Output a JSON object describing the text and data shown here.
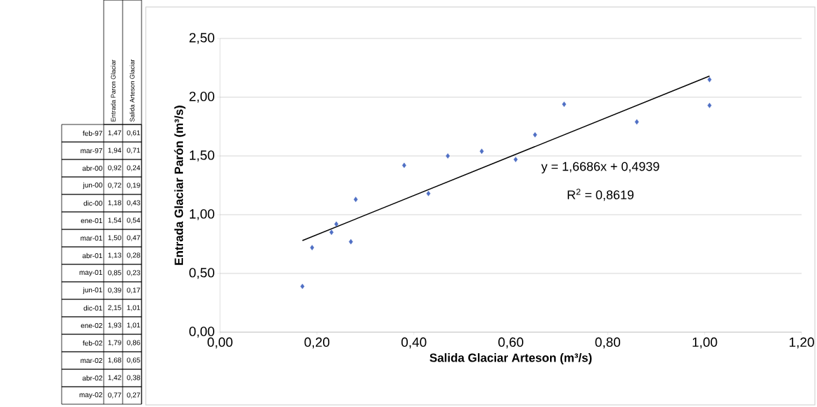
{
  "chart_data": [
    {
      "type": "other",
      "categories": [
        "feb-97",
        "mar-97",
        "abr-00",
        "jun-00",
        "dic-00",
        "ene-01",
        "mar-01",
        "abr-01",
        "may-01",
        "jun-01",
        "dic-01",
        "ene-02",
        "feb-02",
        "mar-02",
        "abr-02",
        "may-02"
      ],
      "series": [
        {
          "name": "Entrada Paron Glaciar",
          "values": [
            1.47,
            1.94,
            0.92,
            0.72,
            1.18,
            1.54,
            1.5,
            1.13,
            0.85,
            0.39,
            2.15,
            1.93,
            1.79,
            1.68,
            1.42,
            0.77
          ],
          "value_labels": [
            "1,47",
            "1,94",
            "0,92",
            "0,72",
            "1,18",
            "1,54",
            "1,50",
            "1,13",
            "0,85",
            "0,39",
            "2,15",
            "1,93",
            "1,79",
            "1,68",
            "1,42",
            "0,77"
          ]
        },
        {
          "name": "Salida Arteson Glaciar",
          "values": [
            0.61,
            0.71,
            0.24,
            0.19,
            0.43,
            0.54,
            0.47,
            0.28,
            0.23,
            0.17,
            1.01,
            1.01,
            0.86,
            0.65,
            0.38,
            0.27
          ],
          "value_labels": [
            "0,61",
            "0,71",
            "0,24",
            "0,19",
            "0,43",
            "0,54",
            "0,47",
            "0,28",
            "0,23",
            "0,17",
            "1,01",
            "1,01",
            "0,86",
            "0,65",
            "0,38",
            "0,27"
          ]
        }
      ]
    },
    {
      "type": "scatter",
      "xlabel": "Salida Glaciar Arteson (m³/s)",
      "ylabel": "Entrada Glaciar Parón (m³/s)",
      "series": [
        {
          "type": "scatter",
          "color": "#4f6fc4",
          "marker": "diamond",
          "x": [
            0.61,
            0.71,
            0.24,
            0.19,
            0.43,
            0.54,
            0.47,
            0.28,
            0.23,
            0.17,
            1.01,
            1.01,
            0.86,
            0.65,
            0.38,
            0.27
          ],
          "values": [
            1.47,
            1.94,
            0.92,
            0.72,
            1.18,
            1.54,
            1.5,
            1.13,
            0.85,
            0.39,
            2.15,
            1.93,
            1.79,
            1.68,
            1.42,
            0.77
          ]
        },
        {
          "type": "line",
          "color": "#000000",
          "marker": "none",
          "x": [
            0.17,
            1.01
          ],
          "values": [
            0.78,
            2.18
          ]
        }
      ],
      "annotations": [
        "y = 1,6686x + 0,4939",
        "R$^{2}$ = 0,8619"
      ],
      "xlim": [
        0,
        1.2
      ],
      "ylim": [
        0,
        2.5
      ],
      "xticks": [
        {
          "value": 0,
          "label": "0,00"
        },
        {
          "value": 0.2,
          "label": "0,20"
        },
        {
          "value": 0.4,
          "label": "0,40"
        },
        {
          "value": 0.6,
          "label": "0,60"
        },
        {
          "value": 0.8,
          "label": "0,80"
        },
        {
          "value": 1.0,
          "label": "1,00"
        },
        {
          "value": 1.2,
          "label": "1,20"
        }
      ],
      "yticks": [
        {
          "value": 0,
          "label": "0,00"
        },
        {
          "value": 0.5,
          "label": "0,50"
        },
        {
          "value": 1.0,
          "label": "1,00"
        },
        {
          "value": 1.5,
          "label": "1,50"
        },
        {
          "value": 2.0,
          "label": "2,00"
        },
        {
          "value": 2.5,
          "label": "2,50"
        }
      ],
      "grid": "y"
    }
  ]
}
